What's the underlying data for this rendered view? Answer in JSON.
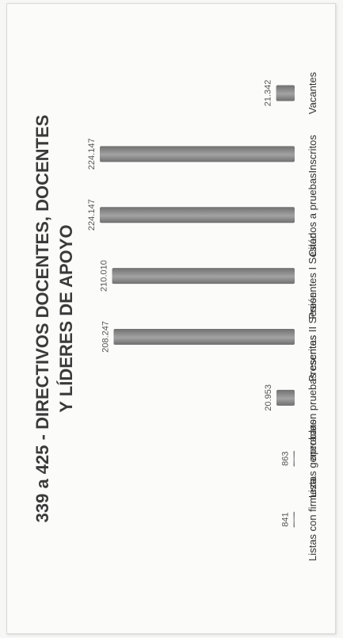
{
  "chart_data": {
    "type": "bar",
    "title_lines": [
      "339 a 425 - DIRECTIVOS DOCENTES, DOCENTES",
      "Y LÍDERES DE APOYO"
    ],
    "categories": [
      "Listas con firmeza",
      "Listas generadas",
      "aprobaron pruebas escritas",
      "Presentes II Sesión",
      "Presentes I Sesión",
      "Citados a pruebas",
      "Inscritos",
      "Vacantes"
    ],
    "values": [
      841,
      863,
      20953,
      208247,
      210010,
      224147,
      224147,
      21342
    ],
    "value_labels": [
      "841",
      "863",
      "20.953",
      "208.247",
      "210.010",
      "224.147",
      "224.147",
      "21.342"
    ],
    "ylim": [
      0,
      224147
    ],
    "grid": false,
    "legend": "none",
    "bar_color": "#8a8a8a"
  }
}
